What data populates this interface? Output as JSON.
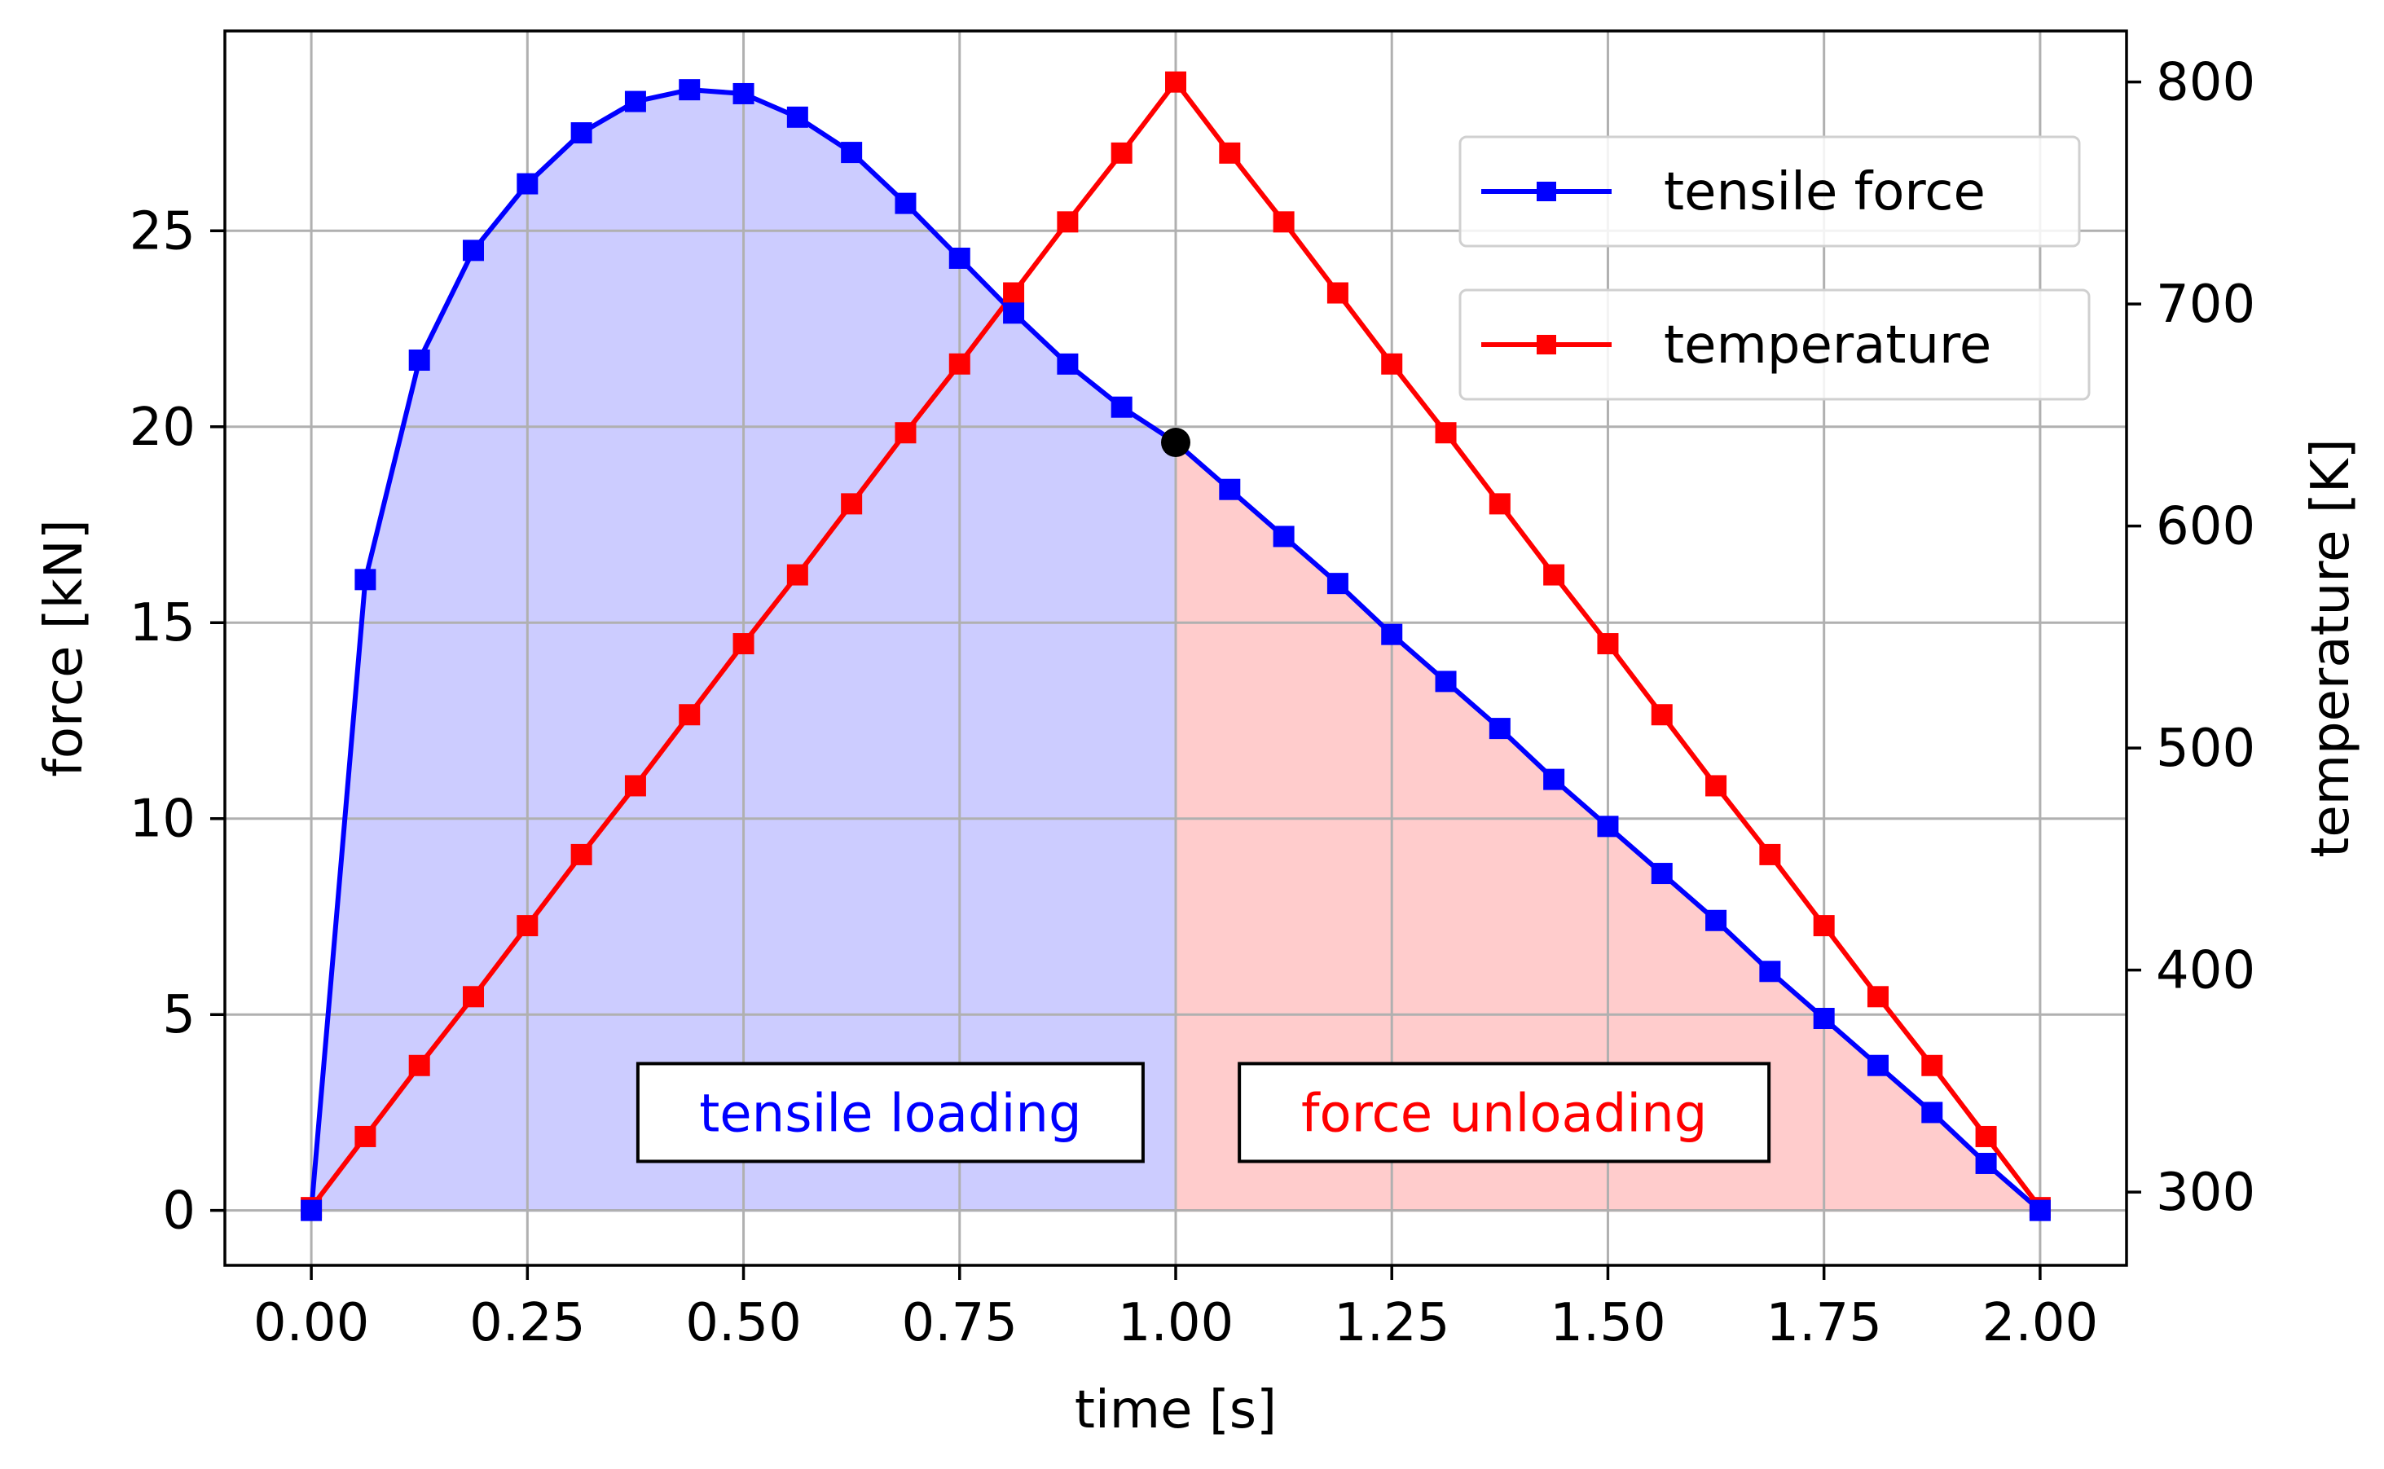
{
  "chart_data": {
    "type": "line",
    "title": "",
    "xlabel": "time [s]",
    "ylabel": "force [kN]",
    "y2label": "temperature [K]",
    "xlim": [
      -0.1,
      2.1
    ],
    "ylim": [
      -1.4,
      30.1
    ],
    "y2lim": [
      267,
      823
    ],
    "xticks": [
      0.0,
      0.25,
      0.5,
      0.75,
      1.0,
      1.25,
      1.5,
      1.75,
      2.0
    ],
    "xtick_labels": [
      "0.00",
      "0.25",
      "0.50",
      "0.75",
      "1.00",
      "1.25",
      "1.50",
      "1.75",
      "2.00"
    ],
    "yticks": [
      0,
      5,
      10,
      15,
      20,
      25
    ],
    "ytick_labels": [
      "0",
      "5",
      "10",
      "15",
      "20",
      "25"
    ],
    "y2ticks": [
      300,
      400,
      500,
      600,
      700,
      800
    ],
    "y2tick_labels": [
      "300",
      "400",
      "500",
      "600",
      "700",
      "800"
    ],
    "grid": true,
    "legend_position": "top-right",
    "x": [
      0.0,
      0.0625,
      0.125,
      0.1875,
      0.25,
      0.3125,
      0.375,
      0.4375,
      0.5,
      0.5625,
      0.625,
      0.6875,
      0.75,
      0.8125,
      0.875,
      0.9375,
      1.0,
      1.0625,
      1.125,
      1.1875,
      1.25,
      1.3125,
      1.375,
      1.4375,
      1.5,
      1.5625,
      1.625,
      1.6875,
      1.75,
      1.8125,
      1.875,
      1.9375,
      2.0
    ],
    "series": [
      {
        "name": "tensile force",
        "axis": "left",
        "color": "#0000ff",
        "marker": "square",
        "values": [
          0.0,
          16.1,
          21.7,
          24.5,
          26.2,
          27.5,
          28.3,
          28.6,
          28.5,
          27.9,
          27.0,
          25.7,
          24.3,
          22.9,
          21.6,
          20.5,
          19.6,
          18.4,
          17.2,
          16.0,
          14.7,
          13.5,
          12.3,
          11.0,
          9.8,
          8.6,
          7.4,
          6.1,
          4.9,
          3.7,
          2.5,
          1.2,
          0.0
        ]
      },
      {
        "name": "temperature",
        "axis": "right",
        "color": "#ff0000",
        "marker": "square",
        "values": [
          293,
          325,
          357,
          388,
          420,
          452,
          483,
          515,
          547,
          578,
          610,
          642,
          673,
          705,
          737,
          768,
          800,
          768,
          737,
          705,
          673,
          642,
          610,
          578,
          547,
          515,
          483,
          452,
          420,
          388,
          357,
          325,
          293
        ]
      }
    ],
    "highlight_point": {
      "x": 1.0,
      "y": 19.6,
      "color": "#000000"
    },
    "regions": [
      {
        "label": "tensile loading",
        "x_from": 0.0,
        "x_to": 1.0,
        "fill_color": "#ccccff",
        "text_color": "#0000ff",
        "label_x": 0.67,
        "label_y": 2.5
      },
      {
        "label": "force unloading",
        "x_from": 1.0,
        "x_to": 2.0,
        "fill_color": "#ffcccc",
        "text_color": "#ff0000",
        "label_x": 1.38,
        "label_y": 2.5
      }
    ]
  }
}
